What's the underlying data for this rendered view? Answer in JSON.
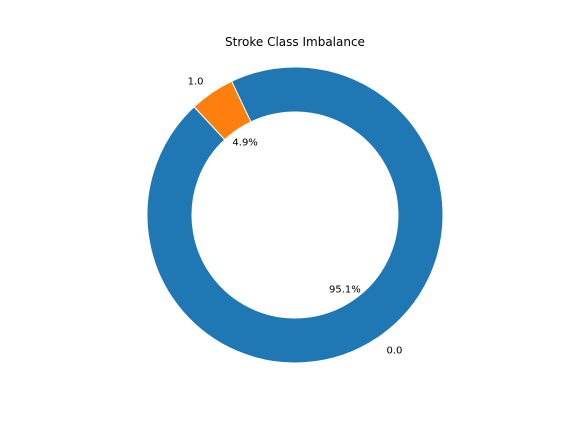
{
  "chart_data": {
    "type": "pie",
    "title": "Stroke Class Imbalance",
    "donut": true,
    "categories": [
      "0.0",
      "1.0"
    ],
    "values": [
      95.1,
      4.9
    ],
    "pct_labels": [
      "95.1%",
      "4.9%"
    ],
    "colors": [
      "#1f77b4",
      "#ff7f0e"
    ],
    "legend": "none"
  }
}
